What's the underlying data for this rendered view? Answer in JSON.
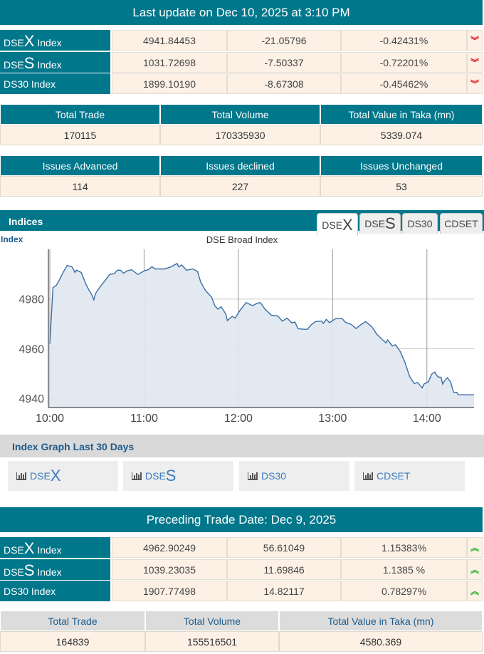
{
  "header": {
    "title": "Last update on Dec 10, 2025 at 3:10 PM"
  },
  "indices": [
    {
      "prefix": "DSE",
      "big": "X",
      "suffix": " Index",
      "value": "4941.84453",
      "change": "-21.05796",
      "pct": "-0.42431%",
      "dir": "down"
    },
    {
      "prefix": "DSE",
      "big": "S",
      "suffix": " Index",
      "value": "1031.72698",
      "change": "-7.50337",
      "pct": "-0.72201%",
      "dir": "down"
    },
    {
      "prefix": "",
      "big": "",
      "suffix": "DS30 Index",
      "value": "1899.10190",
      "change": "-8.67308",
      "pct": "-0.45462%",
      "dir": "down"
    }
  ],
  "trade": {
    "headers": [
      "Total Trade",
      "Total Volume",
      "Total Value in Taka (mn)"
    ],
    "values": [
      "170115",
      "170335930",
      "5339.074"
    ]
  },
  "issues": {
    "headers": [
      "Issues Advanced",
      "Issues declined",
      "Issues Unchanged"
    ],
    "values": [
      "114",
      "227",
      "53"
    ]
  },
  "indices_panel": {
    "title": "Indices",
    "tabs": [
      {
        "prefix": "DSE",
        "big": "X"
      },
      {
        "prefix": "DSE",
        "big": "S"
      },
      {
        "prefix": "DS30",
        "big": ""
      },
      {
        "prefix": "CDSET",
        "big": ""
      }
    ],
    "active_tab": 0
  },
  "chart_data": {
    "type": "area",
    "title": "DSE Broad Index",
    "ylabel": "Index",
    "xlabel": "",
    "x_ticks": [
      "10:00",
      "11:00",
      "12:00",
      "13:00",
      "14:00"
    ],
    "y_ticks": [
      4940,
      4960,
      4980
    ],
    "xlim": [
      "10:00",
      "14:30"
    ],
    "ylim": [
      4936.3,
      5000
    ],
    "grid": true,
    "line_color": "#3a6ea5",
    "fill_color": "#dfe7f0",
    "points": [
      [
        "10:00",
        4962
      ],
      [
        "10:02",
        4984.6
      ],
      [
        "10:04",
        4985.4
      ],
      [
        "10:05",
        4986.4
      ],
      [
        "10:07",
        4988.9
      ],
      [
        "10:08",
        4990.2
      ],
      [
        "10:11",
        4993.5
      ],
      [
        "10:14",
        4993.0
      ],
      [
        "10:15",
        4992.0
      ],
      [
        "10:16",
        4990.7
      ],
      [
        "10:17",
        4991.6
      ],
      [
        "10:18",
        4991.3
      ],
      [
        "10:20",
        4990.7
      ],
      [
        "10:23",
        4985.9
      ],
      [
        "10:25",
        4983.5
      ],
      [
        "10:26",
        4982.6
      ],
      [
        "10:28",
        4979.7
      ],
      [
        "10:29",
        4982.1
      ],
      [
        "10:32",
        4984.9
      ],
      [
        "10:35",
        4987.3
      ],
      [
        "10:38",
        4989.9
      ],
      [
        "10:41",
        4990.2
      ],
      [
        "10:43",
        4991.6
      ],
      [
        "10:45",
        4991.6
      ],
      [
        "10:47",
        4990.4
      ],
      [
        "10:49",
        4991.3
      ],
      [
        "10:52",
        4991.8
      ],
      [
        "10:56",
        4989.9
      ],
      [
        "11:00",
        4991.3
      ],
      [
        "11:03",
        4991.9
      ],
      [
        "11:05",
        4993.0
      ],
      [
        "11:07",
        4992.1
      ],
      [
        "11:13",
        4992.1
      ],
      [
        "11:17",
        4992.9
      ],
      [
        "11:21",
        4994.3
      ],
      [
        "11:22",
        4993.0
      ],
      [
        "11:24",
        4993.7
      ],
      [
        "11:27",
        4991.6
      ],
      [
        "11:31",
        4992.1
      ],
      [
        "11:34",
        4991.1
      ],
      [
        "11:36",
        4986.9
      ],
      [
        "11:39",
        4983.5
      ],
      [
        "11:43",
        4980.7
      ],
      [
        "11:45",
        4977.3
      ],
      [
        "11:47",
        4975.9
      ],
      [
        "11:49",
        4976.9
      ],
      [
        "11:52",
        4974.0
      ],
      [
        "11:53",
        4971.3
      ],
      [
        "11:56",
        4973.0
      ],
      [
        "11:58",
        4972.3
      ],
      [
        "12:01",
        4975.4
      ],
      [
        "12:05",
        4978.6
      ],
      [
        "12:09",
        4977.3
      ],
      [
        "12:12",
        4978.3
      ],
      [
        "12:14",
        4978.5
      ],
      [
        "12:17",
        4975.9
      ],
      [
        "12:21",
        4973.5
      ],
      [
        "12:25",
        4973.2
      ],
      [
        "12:28",
        4971.1
      ],
      [
        "12:31",
        4972.3
      ],
      [
        "12:34",
        4970.4
      ],
      [
        "12:36",
        4970.7
      ],
      [
        "12:38",
        4968.0
      ],
      [
        "12:42",
        4967.8
      ],
      [
        "12:44",
        4967.8
      ],
      [
        "12:46",
        4969.4
      ],
      [
        "12:49",
        4970.9
      ],
      [
        "12:53",
        4971.1
      ],
      [
        "12:54",
        4970.2
      ],
      [
        "12:56",
        4971.8
      ],
      [
        "12:58",
        4970.5
      ],
      [
        "13:02",
        4972.1
      ],
      [
        "13:06",
        4972.1
      ],
      [
        "13:08",
        4970.7
      ],
      [
        "13:12",
        4969.7
      ],
      [
        "13:15",
        4968.1
      ],
      [
        "13:18",
        4969.7
      ],
      [
        "13:21",
        4970.9
      ],
      [
        "13:25",
        4968.8
      ],
      [
        "13:28",
        4965.9
      ],
      [
        "13:31",
        4964.0
      ],
      [
        "13:34",
        4962.3
      ],
      [
        "13:35",
        4963.5
      ],
      [
        "13:38",
        4961.1
      ],
      [
        "13:40",
        4961.6
      ],
      [
        "13:43",
        4958.9
      ],
      [
        "13:46",
        4954.5
      ],
      [
        "13:49",
        4948.8
      ],
      [
        "13:52",
        4945.9
      ],
      [
        "13:54",
        4946.4
      ],
      [
        "13:57",
        4944.2
      ],
      [
        "13:58",
        4945.7
      ],
      [
        "14:01",
        4946.7
      ],
      [
        "14:03",
        4949.7
      ],
      [
        "14:05",
        4950.6
      ],
      [
        "14:07",
        4948.6
      ],
      [
        "14:09",
        4948.5
      ],
      [
        "14:10",
        4945.7
      ],
      [
        "14:11",
        4946.9
      ],
      [
        "14:13",
        4948.3
      ],
      [
        "14:15",
        4946.7
      ],
      [
        "14:17",
        4942.4
      ],
      [
        "14:19",
        4942.4
      ],
      [
        "14:20",
        4941.4
      ],
      [
        "14:30",
        4941.4
      ]
    ]
  },
  "graph30": {
    "title": "Index Graph Last 30 Days",
    "buttons": [
      {
        "prefix": "DSE",
        "big": "X"
      },
      {
        "prefix": "DSE",
        "big": "S"
      },
      {
        "prefix": "DS30",
        "big": ""
      },
      {
        "prefix": "CDSET",
        "big": ""
      }
    ]
  },
  "preceding": {
    "title": "Preceding Trade Date: Dec 9, 2025",
    "indices": [
      {
        "prefix": "DSE",
        "big": "X",
        "suffix": " Index",
        "value": "4962.90249",
        "change": "56.61049",
        "pct": "1.15383%",
        "dir": "up"
      },
      {
        "prefix": "DSE",
        "big": "S",
        "suffix": " Index",
        "value": "1039.23035",
        "change": "11.69846",
        "pct": "1.1385 %",
        "dir": "up"
      },
      {
        "prefix": "",
        "big": "",
        "suffix": "DS30 Index",
        "value": "1907.77498",
        "change": "14.82117",
        "pct": "0.78297%",
        "dir": "up"
      }
    ],
    "trade": {
      "headers": [
        "Total Trade",
        "Total Volume",
        "Total Value in Taka (mn)"
      ],
      "values": [
        "164839",
        "155516501",
        "4580.369"
      ]
    }
  },
  "colors": {
    "teal": "#00778b",
    "peach": "#fdf1e6",
    "down": "#e02020",
    "up": "#2db52d"
  }
}
